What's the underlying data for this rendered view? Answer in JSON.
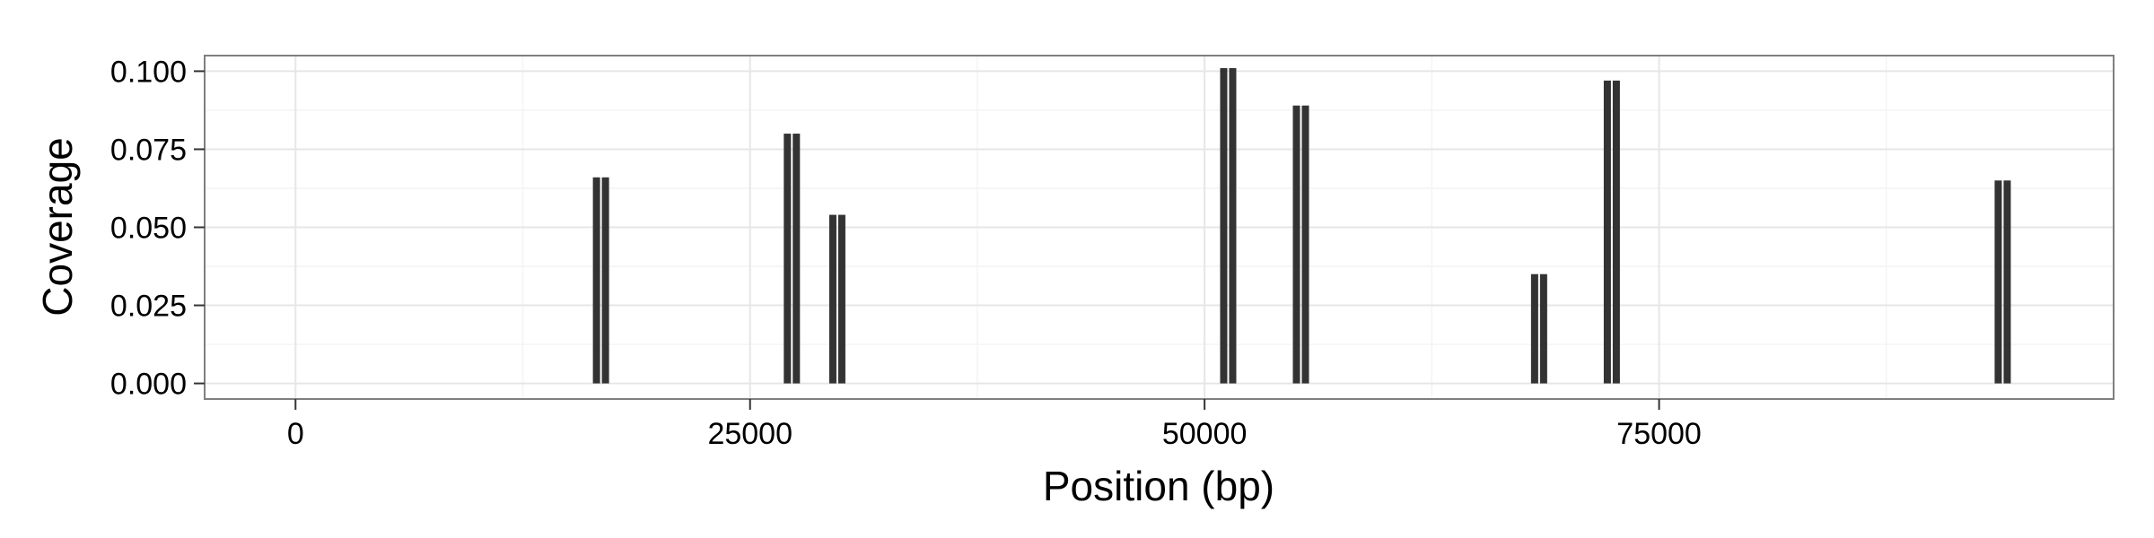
{
  "chart_data": {
    "type": "bar",
    "title": "",
    "xlabel": "Position (bp)",
    "ylabel": "Coverage",
    "x_ticks": [
      0,
      25000,
      50000,
      75000
    ],
    "x_tick_labels": [
      "0",
      "25000",
      "50000",
      "75000"
    ],
    "y_ticks": [
      0.0,
      0.025,
      0.05,
      0.075,
      0.1
    ],
    "y_tick_labels": [
      "0.000",
      "0.025",
      "0.050",
      "0.075",
      "0.100"
    ],
    "xlim": [
      -5000,
      100000
    ],
    "ylim": [
      -0.005,
      0.105
    ],
    "grid": true,
    "legend": "none",
    "bar_color": "#333333",
    "bars": [
      {
        "x": 16800,
        "y": 0.066
      },
      {
        "x": 27300,
        "y": 0.08
      },
      {
        "x": 29800,
        "y": 0.054
      },
      {
        "x": 51300,
        "y": 0.101
      },
      {
        "x": 55300,
        "y": 0.089
      },
      {
        "x": 68400,
        "y": 0.035
      },
      {
        "x": 72400,
        "y": 0.097
      },
      {
        "x": 93900,
        "y": 0.065
      }
    ]
  }
}
